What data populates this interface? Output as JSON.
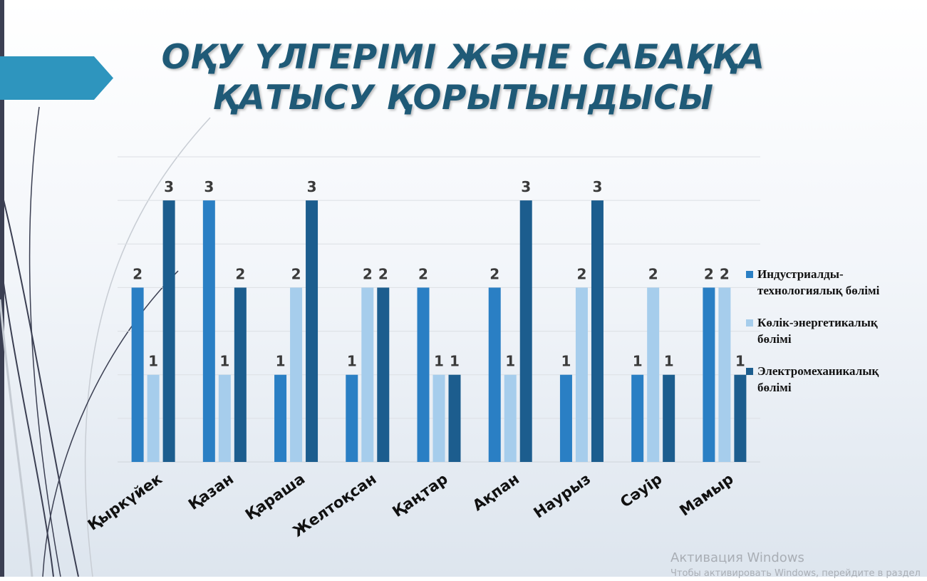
{
  "slide": {
    "title_line1": "ОҚУ ҮЛГЕРІМІ ЖӘНЕ САБАҚҚА",
    "title_line2": "ҚАТЫСУ ҚОРЫТЫНДЫСЫ"
  },
  "chart_data": {
    "type": "bar",
    "title": "",
    "xlabel": "",
    "ylabel": "",
    "ylim": [
      0,
      3.5
    ],
    "grid": true,
    "legend_position": "right",
    "categories": [
      "Қыркүйек",
      "Қазан",
      "Қараша",
      "Желтоқсан",
      "Қаңтар",
      "Ақпан",
      "Наурыз",
      "Сәуір",
      "Мамыр"
    ],
    "series": [
      {
        "name": "Индустриалды-технологиялық бөлімі",
        "color": "#2a7fc4",
        "values": [
          2,
          3,
          1,
          1,
          2,
          2,
          1,
          1,
          2
        ]
      },
      {
        "name": "Көлік-энергетикалық бөлімі",
        "color": "#a6cdec",
        "values": [
          1,
          1,
          2,
          2,
          1,
          1,
          2,
          2,
          2
        ]
      },
      {
        "name": "Электромеханикалық бөлімі",
        "color": "#1c5d8e",
        "values": [
          3,
          2,
          3,
          2,
          1,
          3,
          3,
          1,
          1
        ]
      }
    ]
  },
  "legend": {
    "items": [
      {
        "line1": "Индустриалды-",
        "line2": "технологиялық бөлімі"
      },
      {
        "line1": "Көлік-энергетикалық",
        "line2": "бөлімі"
      },
      {
        "line1": "Электромеханикалық",
        "line2": "бөлімі"
      }
    ]
  },
  "watermark": {
    "title": "Активация Windows",
    "subtitle": "Чтобы активировать Windows, перейдите в раздел"
  }
}
